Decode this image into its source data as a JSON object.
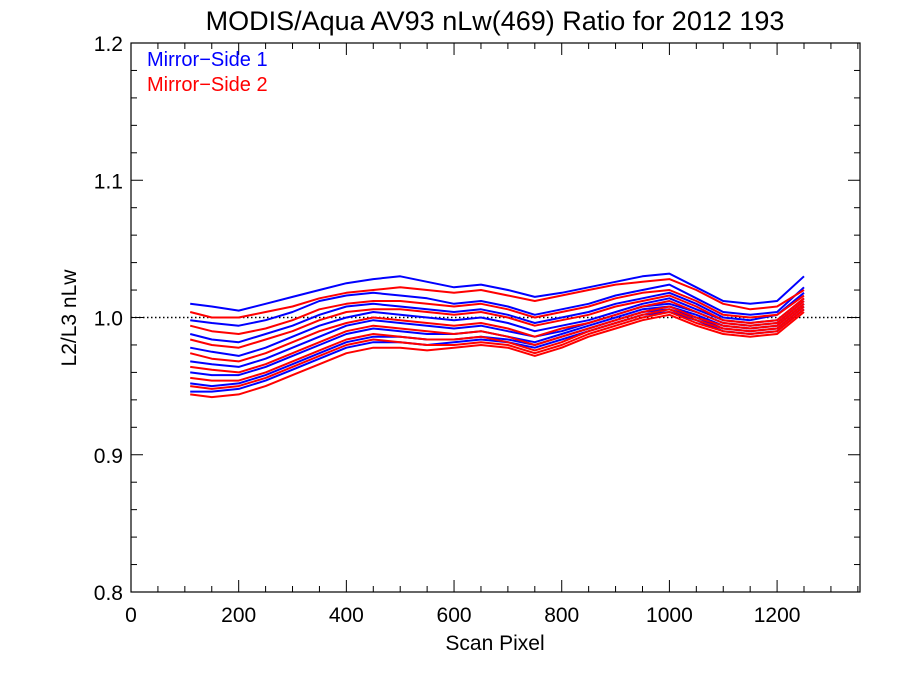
{
  "chart_data": {
    "type": "line",
    "title": "MODIS/Aqua AV93 nLw(469) Ratio for 2012 193",
    "xlabel": "Scan Pixel",
    "ylabel": "L2/L3 nLw",
    "xlim": [
      0,
      1354
    ],
    "ylim": [
      0.8,
      1.2
    ],
    "x_ticks": [
      "0",
      "200",
      "400",
      "600",
      "800",
      "1000",
      "1200"
    ],
    "y_ticks": [
      "0.8",
      "0.9",
      "1.0",
      "1.1",
      "1.2"
    ],
    "reference_line": 1.0,
    "legend": [
      {
        "label": "Mirror−Side 1",
        "color": "#0000ff"
      },
      {
        "label": "Mirror−Side 2",
        "color": "#ff0000"
      }
    ],
    "legend_position": "top-left",
    "x": [
      110,
      150,
      200,
      250,
      300,
      350,
      400,
      450,
      500,
      550,
      600,
      650,
      700,
      750,
      800,
      850,
      900,
      950,
      1000,
      1050,
      1100,
      1150,
      1200,
      1250
    ],
    "series": [
      {
        "color": "#0000ff",
        "values": [
          1.01,
          1.008,
          1.005,
          1.01,
          1.015,
          1.02,
          1.025,
          1.028,
          1.03,
          1.026,
          1.022,
          1.024,
          1.02,
          1.015,
          1.018,
          1.022,
          1.026,
          1.03,
          1.032,
          1.022,
          1.012,
          1.01,
          1.012,
          1.03
        ]
      },
      {
        "color": "#0000ff",
        "values": [
          0.998,
          0.996,
          0.994,
          0.998,
          1.004,
          1.012,
          1.016,
          1.018,
          1.016,
          1.014,
          1.01,
          1.012,
          1.008,
          1.002,
          1.006,
          1.01,
          1.016,
          1.02,
          1.024,
          1.014,
          1.004,
          1.002,
          1.004,
          1.022
        ]
      },
      {
        "color": "#0000ff",
        "values": [
          0.988,
          0.984,
          0.982,
          0.988,
          0.994,
          1.002,
          1.008,
          1.01,
          1.008,
          1.006,
          1.004,
          1.006,
          1.002,
          0.996,
          1.0,
          1.004,
          1.01,
          1.014,
          1.018,
          1.01,
          1.0,
          0.998,
          1.002,
          1.018
        ]
      },
      {
        "color": "#0000ff",
        "values": [
          0.978,
          0.975,
          0.972,
          0.978,
          0.986,
          0.994,
          1.0,
          1.004,
          1.002,
          1.0,
          0.998,
          1.0,
          0.996,
          0.99,
          0.994,
          0.998,
          1.004,
          1.01,
          1.014,
          1.006,
          0.998,
          0.996,
          0.998,
          1.014
        ]
      },
      {
        "color": "#0000ff",
        "values": [
          0.968,
          0.966,
          0.964,
          0.97,
          0.978,
          0.986,
          0.994,
          0.998,
          0.996,
          0.994,
          0.992,
          0.994,
          0.99,
          0.986,
          0.99,
          0.996,
          1.002,
          1.008,
          1.01,
          1.004,
          0.996,
          0.994,
          0.996,
          1.012
        ]
      },
      {
        "color": "#0000ff",
        "values": [
          0.96,
          0.958,
          0.958,
          0.964,
          0.972,
          0.98,
          0.988,
          0.992,
          0.99,
          0.988,
          0.988,
          0.99,
          0.986,
          0.982,
          0.988,
          0.994,
          1.0,
          1.006,
          1.008,
          1.002,
          0.994,
          0.992,
          0.994,
          1.01
        ]
      },
      {
        "color": "#0000ff",
        "values": [
          0.952,
          0.95,
          0.952,
          0.958,
          0.966,
          0.974,
          0.982,
          0.986,
          0.986,
          0.984,
          0.984,
          0.986,
          0.984,
          0.98,
          0.986,
          0.992,
          0.998,
          1.004,
          1.006,
          1.0,
          0.992,
          0.99,
          0.992,
          1.008
        ]
      },
      {
        "color": "#0000ff",
        "values": [
          0.946,
          0.946,
          0.948,
          0.954,
          0.962,
          0.97,
          0.978,
          0.982,
          0.982,
          0.98,
          0.982,
          0.984,
          0.982,
          0.978,
          0.984,
          0.99,
          0.996,
          1.002,
          1.004,
          0.998,
          0.99,
          0.988,
          0.99,
          1.006
        ]
      },
      {
        "color": "#ff0000",
        "values": [
          1.004,
          1.0,
          1.0,
          1.004,
          1.008,
          1.014,
          1.018,
          1.02,
          1.022,
          1.02,
          1.018,
          1.02,
          1.016,
          1.012,
          1.016,
          1.02,
          1.024,
          1.026,
          1.028,
          1.02,
          1.01,
          1.006,
          1.008,
          1.02
        ]
      },
      {
        "color": "#ff0000",
        "values": [
          0.994,
          0.99,
          0.988,
          0.992,
          0.998,
          1.006,
          1.01,
          1.012,
          1.012,
          1.01,
          1.008,
          1.01,
          1.006,
          1.0,
          1.004,
          1.008,
          1.014,
          1.018,
          1.02,
          1.012,
          1.002,
          1.0,
          1.002,
          1.016
        ]
      },
      {
        "color": "#ff0000",
        "values": [
          0.984,
          0.98,
          0.978,
          0.984,
          0.99,
          0.998,
          1.004,
          1.006,
          1.006,
          1.004,
          1.002,
          1.004,
          1.0,
          0.994,
          0.998,
          1.002,
          1.008,
          1.012,
          1.016,
          1.008,
          0.998,
          0.996,
          0.998,
          1.014
        ]
      },
      {
        "color": "#ff0000",
        "values": [
          0.974,
          0.97,
          0.968,
          0.974,
          0.982,
          0.99,
          0.996,
          1.0,
          0.998,
          0.996,
          0.994,
          0.996,
          0.992,
          0.986,
          0.992,
          0.996,
          1.002,
          1.008,
          1.012,
          1.004,
          0.996,
          0.994,
          0.996,
          1.012
        ]
      },
      {
        "color": "#ff0000",
        "values": [
          0.964,
          0.962,
          0.96,
          0.966,
          0.974,
          0.982,
          0.99,
          0.994,
          0.992,
          0.99,
          0.988,
          0.99,
          0.986,
          0.98,
          0.986,
          0.992,
          0.998,
          1.004,
          1.008,
          1.0,
          0.994,
          0.992,
          0.994,
          1.01
        ]
      },
      {
        "color": "#ff0000",
        "values": [
          0.956,
          0.954,
          0.954,
          0.96,
          0.968,
          0.976,
          0.984,
          0.988,
          0.986,
          0.984,
          0.984,
          0.986,
          0.982,
          0.976,
          0.982,
          0.99,
          0.996,
          1.002,
          1.006,
          0.998,
          0.992,
          0.99,
          0.992,
          1.008
        ]
      },
      {
        "color": "#ff0000",
        "values": [
          0.95,
          0.948,
          0.95,
          0.956,
          0.964,
          0.972,
          0.98,
          0.984,
          0.982,
          0.98,
          0.98,
          0.982,
          0.98,
          0.974,
          0.98,
          0.988,
          0.994,
          1.0,
          1.004,
          0.996,
          0.99,
          0.988,
          0.99,
          1.006
        ]
      },
      {
        "color": "#ff0000",
        "values": [
          0.944,
          0.942,
          0.944,
          0.95,
          0.958,
          0.966,
          0.974,
          0.978,
          0.978,
          0.976,
          0.978,
          0.98,
          0.978,
          0.972,
          0.978,
          0.986,
          0.992,
          0.998,
          1.002,
          0.994,
          0.988,
          0.986,
          0.988,
          1.004
        ]
      }
    ]
  }
}
